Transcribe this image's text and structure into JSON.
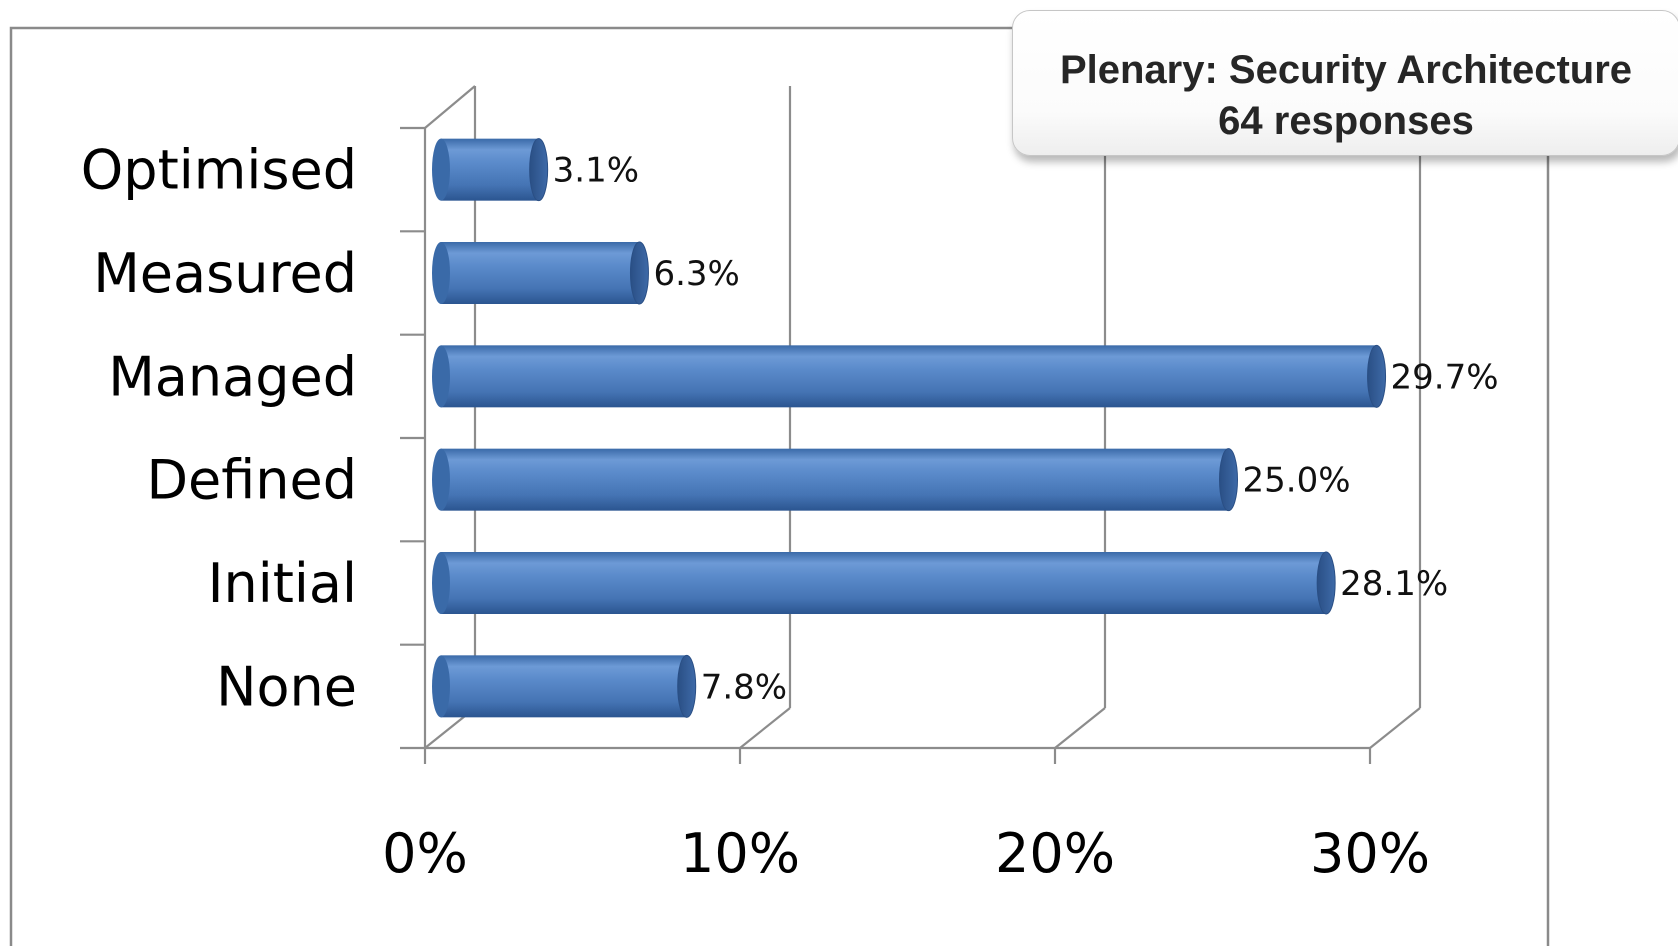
{
  "chart_data": {
    "type": "bar",
    "orientation": "horizontal",
    "style": "3d-cylinder",
    "title": "Plenary: Security Architecture",
    "subtitle": "64 responses",
    "categories": [
      "Optimised",
      "Measured",
      "Managed",
      "Defined",
      "Initial",
      "None"
    ],
    "values": [
      3.1,
      6.3,
      29.7,
      25.0,
      28.1,
      7.8
    ],
    "data_labels": [
      "3.1%",
      "6.3%",
      "29.7%",
      "25.0%",
      "28.1%",
      "7.8%"
    ],
    "xticks": [
      "0%",
      "10%",
      "20%",
      "30%"
    ],
    "xtick_values": [
      0,
      10,
      20,
      30
    ],
    "xlim": [
      0,
      30
    ],
    "xlabel": "",
    "ylabel": "",
    "grid": true,
    "legend": "none",
    "colors": {
      "bar": "#4a7ebb",
      "bar_light": "#8db3e2",
      "bar_dark": "#2f5a90",
      "gridline": "#8c8c8c"
    }
  }
}
